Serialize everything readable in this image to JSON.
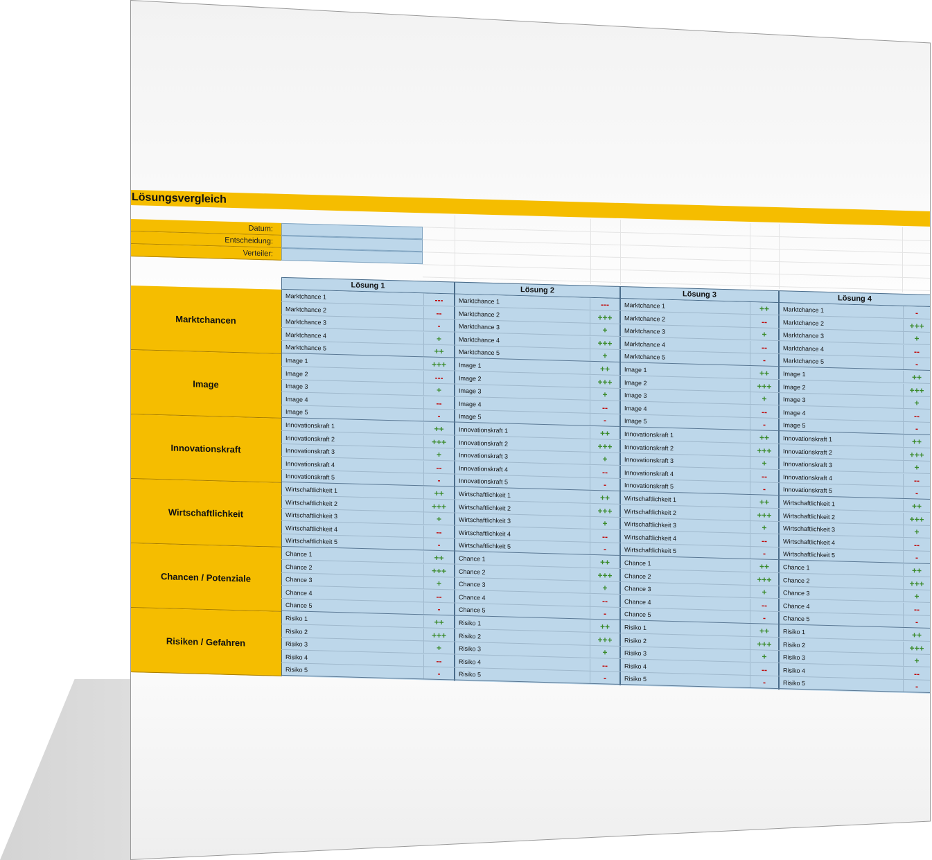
{
  "title": "Lösungsvergleich",
  "meta": [
    {
      "label": "Datum:",
      "value": ""
    },
    {
      "label": "Entscheidung:",
      "value": ""
    },
    {
      "label": "Verteiler:",
      "value": ""
    }
  ],
  "solutions": [
    "Lösung 1",
    "Lösung 2",
    "Lösung 3",
    "Lösung 4"
  ],
  "colors": {
    "accent": "#f5bd00",
    "cell": "#bdd7ea",
    "positive": "#3a8a2a",
    "negative": "#c00000"
  },
  "categories": [
    {
      "name": "Marktchancen",
      "items": [
        {
          "label": "Marktchance 1",
          "ratings": [
            "---",
            "---",
            "++",
            "-"
          ]
        },
        {
          "label": "Marktchance 2",
          "ratings": [
            "--",
            "+++",
            "--",
            "+++"
          ]
        },
        {
          "label": "Marktchance 3",
          "ratings": [
            "-",
            "+",
            "+",
            "+"
          ]
        },
        {
          "label": "Marktchance 4",
          "ratings": [
            "+",
            "+++",
            "--",
            "--"
          ]
        },
        {
          "label": "Marktchance 5",
          "ratings": [
            "++",
            "+",
            "-",
            "-"
          ]
        }
      ]
    },
    {
      "name": "Image",
      "items": [
        {
          "label": "Image 1",
          "ratings": [
            "+++",
            "++",
            "++",
            "++"
          ]
        },
        {
          "label": "Image 2",
          "ratings": [
            "---",
            "+++",
            "+++",
            "+++"
          ]
        },
        {
          "label": "Image 3",
          "ratings": [
            "+",
            "+",
            "+",
            "+"
          ]
        },
        {
          "label": "Image 4",
          "ratings": [
            "--",
            "--",
            "--",
            "--"
          ]
        },
        {
          "label": "Image 5",
          "ratings": [
            "-",
            "-",
            "-",
            "-"
          ]
        }
      ]
    },
    {
      "name": "Innovationskraft",
      "items": [
        {
          "label": "Innovationskraft 1",
          "ratings": [
            "++",
            "++",
            "++",
            "++"
          ]
        },
        {
          "label": "Innovationskraft 2",
          "ratings": [
            "+++",
            "+++",
            "+++",
            "+++"
          ]
        },
        {
          "label": "Innovationskraft 3",
          "ratings": [
            "+",
            "+",
            "+",
            "+"
          ]
        },
        {
          "label": "Innovationskraft 4",
          "ratings": [
            "--",
            "--",
            "--",
            "--"
          ]
        },
        {
          "label": "Innovationskraft 5",
          "ratings": [
            "-",
            "-",
            "-",
            "-"
          ]
        }
      ]
    },
    {
      "name": "Wirtschaftlichkeit",
      "items": [
        {
          "label": "Wirtschaftlichkeit 1",
          "ratings": [
            "++",
            "++",
            "++",
            "++"
          ]
        },
        {
          "label": "Wirtschaftlichkeit 2",
          "ratings": [
            "+++",
            "+++",
            "+++",
            "+++"
          ]
        },
        {
          "label": "Wirtschaftlichkeit 3",
          "ratings": [
            "+",
            "+",
            "+",
            "+"
          ]
        },
        {
          "label": "Wirtschaftlichkeit 4",
          "ratings": [
            "--",
            "--",
            "--",
            "--"
          ]
        },
        {
          "label": "Wirtschaftlichkeit 5",
          "ratings": [
            "-",
            "-",
            "-",
            "-"
          ]
        }
      ]
    },
    {
      "name": "Chancen / Potenziale",
      "items": [
        {
          "label": "Chance 1",
          "ratings": [
            "++",
            "++",
            "++",
            "++"
          ]
        },
        {
          "label": "Chance 2",
          "ratings": [
            "+++",
            "+++",
            "+++",
            "+++"
          ]
        },
        {
          "label": "Chance 3",
          "ratings": [
            "+",
            "+",
            "+",
            "+"
          ]
        },
        {
          "label": "Chance 4",
          "ratings": [
            "--",
            "--",
            "--",
            "--"
          ]
        },
        {
          "label": "Chance 5",
          "ratings": [
            "-",
            "-",
            "-",
            "-"
          ]
        }
      ]
    },
    {
      "name": "Risiken / Gefahren",
      "items": [
        {
          "label": "Risiko 1",
          "ratings": [
            "++",
            "++",
            "++",
            "++"
          ]
        },
        {
          "label": "Risiko 2",
          "ratings": [
            "+++",
            "+++",
            "+++",
            "+++"
          ]
        },
        {
          "label": "Risiko 3",
          "ratings": [
            "+",
            "+",
            "+",
            "+"
          ]
        },
        {
          "label": "Risiko 4",
          "ratings": [
            "--",
            "--",
            "--",
            "--"
          ]
        },
        {
          "label": "Risiko 5",
          "ratings": [
            "-",
            "-",
            "-",
            "-"
          ]
        }
      ]
    }
  ]
}
